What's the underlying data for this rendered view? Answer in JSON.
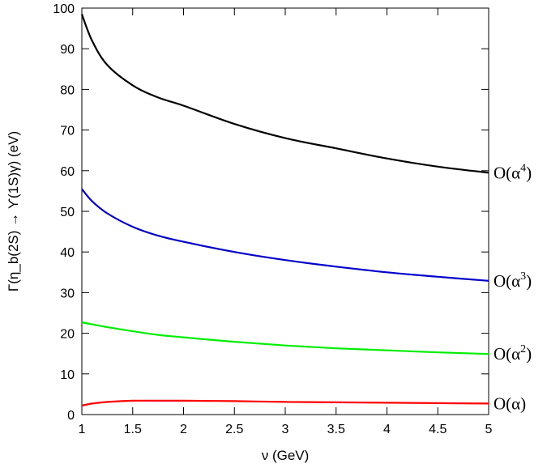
{
  "chart_data": {
    "type": "line",
    "xlabel": "ν (GeV)",
    "ylabel": "Γ(η_b(2S) → ϒ(1S)γ) (eV)",
    "xlim": [
      1,
      5
    ],
    "ylim": [
      0,
      100
    ],
    "x_ticks": [
      "1",
      "1.5",
      "2",
      "2.5",
      "3",
      "3.5",
      "4",
      "4.5",
      "5"
    ],
    "y_ticks": [
      "0",
      "10",
      "20",
      "30",
      "40",
      "50",
      "60",
      "70",
      "80",
      "90",
      "100"
    ],
    "grid": false,
    "legend": "none",
    "x": [
      1.0,
      1.1,
      1.25,
      1.5,
      1.75,
      2.0,
      2.5,
      3.0,
      3.5,
      4.0,
      4.5,
      5.0
    ],
    "series": [
      {
        "name": "O(α)",
        "label_base": "O(α)",
        "label_sup": "",
        "color": "#ff0000",
        "values": [
          2.2,
          2.7,
          3.1,
          3.4,
          3.4,
          3.4,
          3.3,
          3.1,
          3.0,
          2.9,
          2.8,
          2.7
        ]
      },
      {
        "name": "O(α2)",
        "label_base": "O(α",
        "label_sup": "2",
        "color": "#00ee00",
        "values": [
          22.7,
          22.2,
          21.5,
          20.5,
          19.6,
          19.0,
          17.9,
          17.0,
          16.3,
          15.8,
          15.3,
          14.9
        ]
      },
      {
        "name": "O(α3)",
        "label_base": "O(α",
        "label_sup": "3",
        "color": "#0000cc",
        "values": [
          55.5,
          52.5,
          49.5,
          46.2,
          44.0,
          42.5,
          40.0,
          38.0,
          36.4,
          35.0,
          33.9,
          32.9
        ]
      },
      {
        "name": "O(α4)",
        "label_base": "O(α",
        "label_sup": "4",
        "color": "#000000",
        "values": [
          98.5,
          92.0,
          86.0,
          81.0,
          78.0,
          76.0,
          71.5,
          68.0,
          65.5,
          63.0,
          61.0,
          59.5
        ]
      }
    ]
  }
}
